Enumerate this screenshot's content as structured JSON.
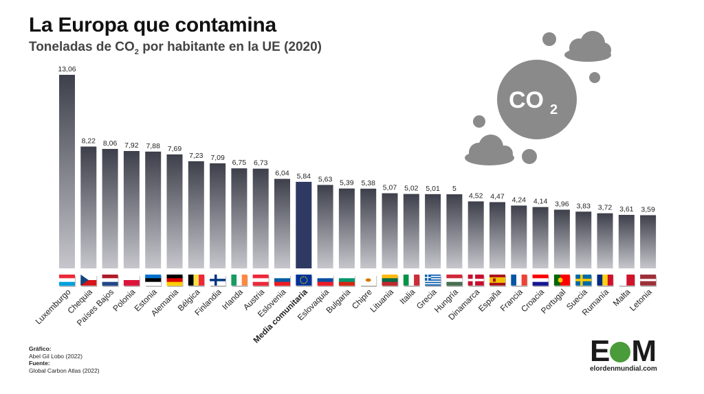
{
  "header": {
    "title": "La Europa que contamina",
    "subtitle_prefix": "Toneladas de CO",
    "subtitle_sub": "2",
    "subtitle_suffix": " por habitante en la UE (2020)"
  },
  "cloud_icon_text": {
    "main": "CO",
    "sub": "2"
  },
  "credits": {
    "grafico_label": "Gráfico:",
    "grafico_value": "Abel Gil Lobo (2022)",
    "fuente_label": "Fuente:",
    "fuente_value": "Global Carbon Atlas (2022)"
  },
  "logo": {
    "mark_left": "E",
    "mark_right": "M",
    "site": "elordenmundial.com",
    "color": "#4a9b3a"
  },
  "colors": {
    "highlight_bar": "#2e3a63",
    "bar_dark": "#3a3d48",
    "bar_light": "#d6d6da",
    "cloud": "#8a8a8a"
  },
  "chart_data": {
    "type": "bar",
    "title": "La Europa que contamina",
    "subtitle": "Toneladas de CO2 por habitante en la UE (2020)",
    "xlabel": "",
    "ylabel": "",
    "ylim": [
      0,
      13.06
    ],
    "highlight": "Media comunitaria",
    "categories": [
      "Luxemburgo",
      "Chequia",
      "Países Bajos",
      "Polonia",
      "Estonia",
      "Alemania",
      "Bélgica",
      "Finlandia",
      "Irlanda",
      "Austria",
      "Eslovenia",
      "Media comunitaria",
      "Eslovaquia",
      "Bulgaria",
      "Chipre",
      "Lituania",
      "Italia",
      "Grecia",
      "Hungría",
      "Dinamarca",
      "España",
      "Francia",
      "Croacia",
      "Portugal",
      "Suecia",
      "Rumanía",
      "Malta",
      "Letonia"
    ],
    "values": [
      13.06,
      8.22,
      8.06,
      7.92,
      7.88,
      7.69,
      7.23,
      7.09,
      6.75,
      6.73,
      6.04,
      5.84,
      5.63,
      5.39,
      5.38,
      5.07,
      5.02,
      5.01,
      5,
      4.52,
      4.47,
      4.24,
      4.14,
      3.96,
      3.83,
      3.72,
      3.61,
      3.59
    ],
    "value_labels": [
      "13,06",
      "8,22",
      "8,06",
      "7,92",
      "7,88",
      "7,69",
      "7,23",
      "7,09",
      "6,75",
      "6,73",
      "6,04",
      "5,84",
      "5,63",
      "5,39",
      "5,38",
      "5,07",
      "5,02",
      "5,01",
      "5",
      "4,52",
      "4,47",
      "4,24",
      "4,14",
      "3,96",
      "3,83",
      "3,72",
      "3,61",
      "3,59"
    ],
    "flags": [
      {
        "type": "h",
        "colors": [
          "#ed2939",
          "#ffffff",
          "#00a1de"
        ]
      },
      {
        "type": "czech",
        "colors": [
          "#ffffff",
          "#d7141a",
          "#11457e"
        ]
      },
      {
        "type": "h",
        "colors": [
          "#ae1c28",
          "#ffffff",
          "#21468b"
        ]
      },
      {
        "type": "h",
        "colors": [
          "#ffffff",
          "#dc143c"
        ]
      },
      {
        "type": "h",
        "colors": [
          "#0072ce",
          "#000000",
          "#ffffff"
        ]
      },
      {
        "type": "h",
        "colors": [
          "#000000",
          "#dd0000",
          "#ffce00"
        ]
      },
      {
        "type": "v",
        "colors": [
          "#000000",
          "#fae042",
          "#ed2939"
        ]
      },
      {
        "type": "nordic",
        "colors": [
          "#ffffff",
          "#003580"
        ]
      },
      {
        "type": "v",
        "colors": [
          "#169b62",
          "#ffffff",
          "#ff883e"
        ]
      },
      {
        "type": "h",
        "colors": [
          "#ed2939",
          "#ffffff",
          "#ed2939"
        ]
      },
      {
        "type": "h",
        "colors": [
          "#ffffff",
          "#005da4",
          "#ed1c24"
        ]
      },
      {
        "type": "eu",
        "colors": [
          "#003399",
          "#ffcc00"
        ]
      },
      {
        "type": "h",
        "colors": [
          "#ffffff",
          "#0b4ea2",
          "#ee1c25"
        ]
      },
      {
        "type": "h",
        "colors": [
          "#ffffff",
          "#00966e",
          "#d62612"
        ]
      },
      {
        "type": "plain",
        "colors": [
          "#ffffff",
          "#d57800"
        ]
      },
      {
        "type": "h",
        "colors": [
          "#fdb913",
          "#006a44",
          "#c1272d"
        ]
      },
      {
        "type": "v",
        "colors": [
          "#009246",
          "#ffffff",
          "#ce2b37"
        ]
      },
      {
        "type": "greece",
        "colors": [
          "#0d5eaf",
          "#ffffff"
        ]
      },
      {
        "type": "h",
        "colors": [
          "#ce2939",
          "#ffffff",
          "#477050"
        ]
      },
      {
        "type": "nordic",
        "colors": [
          "#c8102e",
          "#ffffff"
        ]
      },
      {
        "type": "spain",
        "colors": [
          "#aa151b",
          "#f1bf00"
        ]
      },
      {
        "type": "v",
        "colors": [
          "#0055a4",
          "#ffffff",
          "#ef4135"
        ]
      },
      {
        "type": "h",
        "colors": [
          "#ff0000",
          "#ffffff",
          "#171796"
        ]
      },
      {
        "type": "portugal",
        "colors": [
          "#006600",
          "#ff0000"
        ]
      },
      {
        "type": "nordic",
        "colors": [
          "#006aa7",
          "#fecc00"
        ]
      },
      {
        "type": "v",
        "colors": [
          "#002b7f",
          "#fcd116",
          "#ce1126"
        ]
      },
      {
        "type": "v",
        "colors": [
          "#ffffff",
          "#cf142b"
        ]
      },
      {
        "type": "latvia",
        "colors": [
          "#9e3039",
          "#ffffff"
        ]
      }
    ]
  }
}
